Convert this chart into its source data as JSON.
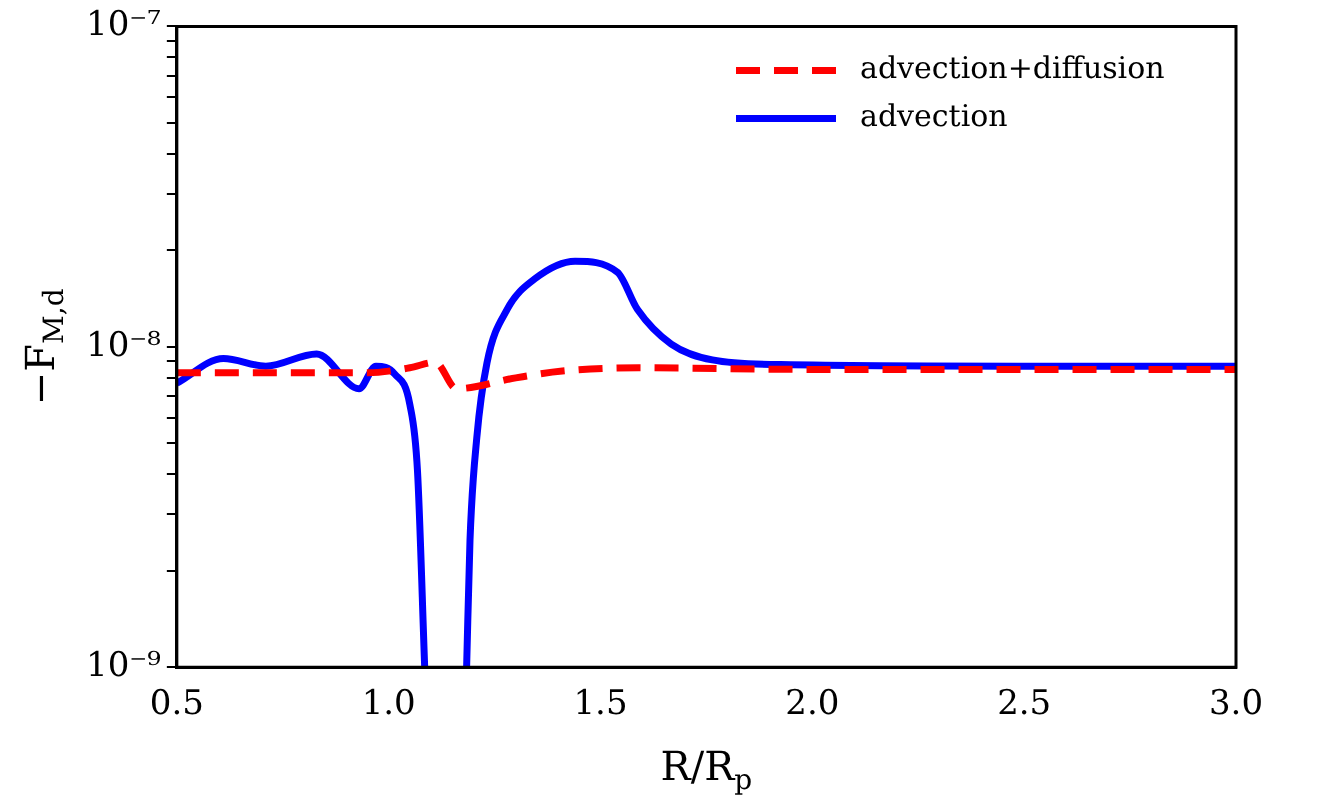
{
  "chart_data": {
    "type": "line",
    "xlabel": "R/R$_{p}$",
    "ylabel": "−F$_{M,d}$",
    "log": "y",
    "grid": false,
    "legend": "top right",
    "marker": "none",
    "xlim": [
      0.5,
      3.0
    ],
    "ylim": [
      1e-09,
      1e-07
    ],
    "xticks": [
      {
        "value": 0.5,
        "label": "0.5"
      },
      {
        "value": 1,
        "label": "1.0"
      },
      {
        "value": 1.5,
        "label": "1.5"
      },
      {
        "value": 2,
        "label": "2.0"
      },
      {
        "value": 2.5,
        "label": "2.5"
      },
      {
        "value": 3,
        "label": "3.0"
      }
    ],
    "yticks": [
      {
        "value": 1e-09,
        "label": "10⁻⁹"
      },
      {
        "value": 2e-09,
        "label": null
      },
      {
        "value": 3e-09,
        "label": null
      },
      {
        "value": 4e-09,
        "label": null
      },
      {
        "value": 5e-09,
        "label": null
      },
      {
        "value": 6e-09,
        "label": null
      },
      {
        "value": 7e-09,
        "label": null
      },
      {
        "value": 8e-09,
        "label": null
      },
      {
        "value": 9e-09,
        "label": null
      },
      {
        "value": 1e-08,
        "label": "10⁻⁸"
      },
      {
        "value": 2e-08,
        "label": null
      },
      {
        "value": 3e-08,
        "label": null
      },
      {
        "value": 4e-08,
        "label": null
      },
      {
        "value": 5e-08,
        "label": null
      },
      {
        "value": 6e-08,
        "label": null
      },
      {
        "value": 7e-08,
        "label": null
      },
      {
        "value": 8e-08,
        "label": null
      },
      {
        "value": 9e-08,
        "label": null
      },
      {
        "value": 1e-07,
        "label": "10⁻⁷"
      }
    ],
    "series": [
      {
        "name": "advection+diffusion",
        "color": "#ff0000",
        "line_style": "dashed",
        "x": [
          0.5,
          0.7,
          0.95,
          1.05,
          1.11,
          1.16,
          1.3,
          1.41,
          1.59,
          2.0,
          2.5,
          3.0
        ],
        "values": [
          8.3e-09,
          8.3e-09,
          8.3e-09,
          8.6e-09,
          8.95e-09,
          7.4e-09,
          8e-09,
          8.4e-09,
          8.6e-09,
          8.5e-09,
          8.5e-09,
          8.5e-09
        ]
      },
      {
        "name": "advection",
        "color": "#0000ff",
        "line_style": "solid",
        "x": [
          0.5,
          0.61,
          0.71,
          0.83,
          0.93,
          0.97,
          1.015,
          1.05,
          1.068,
          1.085,
          1.13,
          1.184,
          1.192,
          1.208,
          1.232,
          1.28,
          1.345,
          1.44,
          1.54,
          1.587,
          1.667,
          1.764,
          1.925,
          2.5,
          3.0
        ],
        "values": [
          7.7e-09,
          9.2e-09,
          8.7e-09,
          9.5e-09,
          7.4e-09,
          8.7e-09,
          8.2e-09,
          6.6e-09,
          4.1e-09,
          1e-09,
          null,
          1e-09,
          2.5e-09,
          5.2e-09,
          8.9e-09,
          1.31e-08,
          1.63e-08,
          1.85e-08,
          1.71e-08,
          1.31e-08,
          1.02e-08,
          9.1e-09,
          8.8e-09,
          8.7e-09,
          8.7e-09
        ]
      }
    ]
  }
}
